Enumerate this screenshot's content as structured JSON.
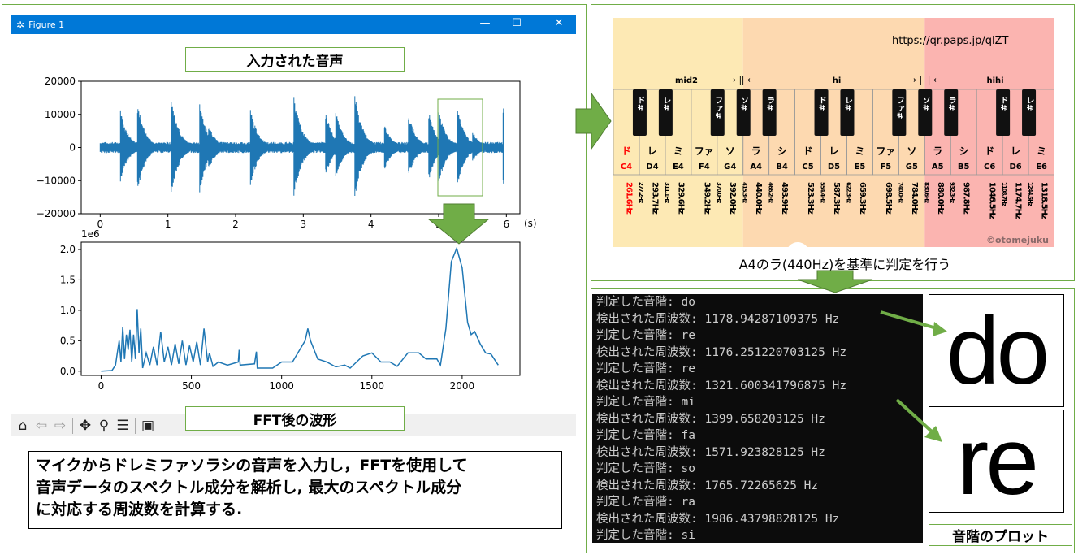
{
  "window": {
    "title": "Figure 1",
    "minimize": "—",
    "maximize": "☐",
    "close": "✕"
  },
  "labels": {
    "input_audio": "入力された音声",
    "fft_waveform": "FFT後の波形",
    "description": [
      "マイクからドレミファソラシの音声を入力し，FFTを使用して",
      "音声データのスペクトル成分を解析し, 最大のスペクトル成分",
      "に対応する周波数を計算する."
    ],
    "reference": "A4のラ(440Hz)を基準に判定を行う",
    "scale_plot": "音階のプロット",
    "plot_do": "do",
    "plot_re": "re"
  },
  "toolbar": {
    "icons": [
      "home-icon",
      "back-arrow-icon",
      "forward-arrow-icon",
      "pan-icon",
      "zoom-icon",
      "configure-icon",
      "save-icon"
    ]
  },
  "chart_data": [
    {
      "type": "line",
      "title": "",
      "xlabel": "(s)",
      "xticks": [
        "0",
        "1",
        "2",
        "3",
        "4",
        "5",
        "6"
      ],
      "yticks": [
        "−20000",
        "−10000",
        "0",
        "10000",
        "20000"
      ],
      "xlim": [
        -0.28,
        6.2
      ],
      "ylim": [
        -20000,
        20000
      ],
      "color": "#1f77b4",
      "noise_level": 1500,
      "bursts": [
        {
          "t": 0.3,
          "max": 11500,
          "min": -10500
        },
        {
          "t": 0.55,
          "max": 14000,
          "min": -14000
        },
        {
          "t": 1.05,
          "max": 15500,
          "min": -15000
        },
        {
          "t": 1.47,
          "max": 13500,
          "min": -14000
        },
        {
          "t": 1.6,
          "max": 7000,
          "min": -7000
        },
        {
          "t": 2.22,
          "max": 12000,
          "min": -12000
        },
        {
          "t": 2.86,
          "max": 16800,
          "min": -16000
        },
        {
          "t": 3.33,
          "max": 11000,
          "min": -8500
        },
        {
          "t": 3.48,
          "max": 11500,
          "min": -9500
        },
        {
          "t": 3.76,
          "max": 17500,
          "min": -16500
        },
        {
          "t": 4.2,
          "max": 7000,
          "min": -7000
        },
        {
          "t": 4.55,
          "max": 11000,
          "min": -9500
        },
        {
          "t": 4.85,
          "max": 11500,
          "min": -10500
        },
        {
          "t": 5.0,
          "max": 12000,
          "min": -11500
        },
        {
          "t": 5.28,
          "max": 12000,
          "min": -11500
        },
        {
          "t": 5.5,
          "max": 5000,
          "min": -4500
        },
        {
          "t": 5.95,
          "max": 13500,
          "min": -12500
        }
      ],
      "t_end": 5.96
    },
    {
      "type": "line",
      "title": "",
      "y_offset_label": "1e6",
      "xticks": [
        "0",
        "500",
        "1000",
        "1500",
        "2000"
      ],
      "yticks": [
        "0.0",
        "0.5",
        "1.0",
        "1.5",
        "2.0"
      ],
      "xlim": [
        -110,
        2320
      ],
      "ylim": [
        -0.07,
        2.12
      ],
      "color": "#1f77b4",
      "points": [
        [
          0,
          0
        ],
        [
          60,
          0.01
        ],
        [
          80,
          0.1
        ],
        [
          90,
          0.3
        ],
        [
          100,
          0.5
        ],
        [
          110,
          0.15
        ],
        [
          120,
          0.73
        ],
        [
          130,
          0.2
        ],
        [
          140,
          0.6
        ],
        [
          150,
          0.35
        ],
        [
          160,
          0.68
        ],
        [
          170,
          0.15
        ],
        [
          180,
          0.6
        ],
        [
          190,
          0.2
        ],
        [
          200,
          1.02
        ],
        [
          210,
          0.3
        ],
        [
          220,
          0.7
        ],
        [
          230,
          0.05
        ],
        [
          250,
          0.3
        ],
        [
          270,
          0.1
        ],
        [
          290,
          0.4
        ],
        [
          310,
          0.1
        ],
        [
          330,
          0.65
        ],
        [
          350,
          0.15
        ],
        [
          370,
          0.4
        ],
        [
          390,
          0.1
        ],
        [
          410,
          0.45
        ],
        [
          430,
          0.12
        ],
        [
          450,
          0.5
        ],
        [
          470,
          0.1
        ],
        [
          490,
          0.42
        ],
        [
          510,
          0.15
        ],
        [
          530,
          0.48
        ],
        [
          550,
          0.1
        ],
        [
          570,
          0.7
        ],
        [
          590,
          0.15
        ],
        [
          600,
          0.3
        ],
        [
          620,
          0.08
        ],
        [
          650,
          0.15
        ],
        [
          700,
          0.1
        ],
        [
          760,
          0.15
        ],
        [
          765,
          0.35
        ],
        [
          770,
          0.1
        ],
        [
          850,
          0.12
        ],
        [
          860,
          0.32
        ],
        [
          865,
          0.05
        ],
        [
          950,
          0.05
        ],
        [
          1000,
          0.15
        ],
        [
          1060,
          0.15
        ],
        [
          1100,
          0.35
        ],
        [
          1130,
          0.5
        ],
        [
          1145,
          0.7
        ],
        [
          1160,
          0.5
        ],
        [
          1200,
          0.2
        ],
        [
          1250,
          0.15
        ],
        [
          1300,
          0.07
        ],
        [
          1350,
          0.1
        ],
        [
          1380,
          0.05
        ],
        [
          1450,
          0.25
        ],
        [
          1500,
          0.3
        ],
        [
          1550,
          0.15
        ],
        [
          1600,
          0.15
        ],
        [
          1640,
          0.08
        ],
        [
          1700,
          0.3
        ],
        [
          1760,
          0.3
        ],
        [
          1800,
          0.2
        ],
        [
          1860,
          0.2
        ],
        [
          1880,
          0.1
        ],
        [
          1910,
          0.7
        ],
        [
          1940,
          1.8
        ],
        [
          1970,
          2.02
        ],
        [
          2000,
          1.7
        ],
        [
          2030,
          0.8
        ],
        [
          2050,
          0.6
        ],
        [
          2070,
          0.65
        ],
        [
          2100,
          0.45
        ],
        [
          2130,
          0.3
        ],
        [
          2160,
          0.28
        ],
        [
          2200,
          0.1
        ]
      ]
    }
  ],
  "piano": {
    "url": "https://qr.paps.jp/qlZT",
    "credit": "©otomejuku",
    "sections": [
      {
        "label": "mid2",
        "color": "#fde9b4"
      },
      {
        "label": "hi",
        "color": "#fdd9b0"
      },
      {
        "label": "hihi",
        "color": "#fbb4b0"
      }
    ],
    "range_arrows": [
      "→ |",
      "| ←",
      "→ |",
      "| ←"
    ],
    "white_keys": [
      {
        "jp": "ド",
        "code": "C4",
        "freq": "261.6Hz",
        "highlight": true
      },
      {
        "jp": "レ",
        "code": "D4",
        "freq": "293.7Hz"
      },
      {
        "jp": "ミ",
        "code": "E4",
        "freq": "329.6Hz"
      },
      {
        "jp": "ファ",
        "code": "F4",
        "freq": "349.2Hz"
      },
      {
        "jp": "ソ",
        "code": "G4",
        "freq": "392.0Hz"
      },
      {
        "jp": "ラ",
        "code": "A4",
        "freq": "440.0Hz"
      },
      {
        "jp": "シ",
        "code": "B4",
        "freq": "493.9Hz"
      },
      {
        "jp": "ド",
        "code": "C5",
        "freq": "523.3Hz"
      },
      {
        "jp": "レ",
        "code": "D5",
        "freq": "587.3Hz"
      },
      {
        "jp": "ミ",
        "code": "E5",
        "freq": "659.3Hz"
      },
      {
        "jp": "ファ",
        "code": "F5",
        "freq": "698.5Hz"
      },
      {
        "jp": "ソ",
        "code": "G5",
        "freq": "784.0Hz"
      },
      {
        "jp": "ラ",
        "code": "A5",
        "freq": "880.0Hz"
      },
      {
        "jp": "シ",
        "code": "B5",
        "freq": "987.8Hz"
      },
      {
        "jp": "ド",
        "code": "C6",
        "freq": "1046.5Hz"
      },
      {
        "jp": "レ",
        "code": "D6",
        "freq": "1174.7Hz"
      },
      {
        "jp": "ミ",
        "code": "E6",
        "freq": "1318.5Hz"
      }
    ],
    "black_keys": [
      {
        "jp": "ド#",
        "after": 0,
        "freq": "277.2Hz"
      },
      {
        "jp": "レ#",
        "after": 1,
        "freq": "311.1Hz"
      },
      {
        "jp": "ファ#",
        "after": 3,
        "freq": "370.0Hz"
      },
      {
        "jp": "ソ#",
        "after": 4,
        "freq": "415.3Hz"
      },
      {
        "jp": "ラ#",
        "after": 5,
        "freq": "466.2Hz"
      },
      {
        "jp": "ド#",
        "after": 7,
        "freq": "554.4Hz"
      },
      {
        "jp": "レ#",
        "after": 8,
        "freq": "622.3Hz"
      },
      {
        "jp": "ファ#",
        "after": 10,
        "freq": "740.0Hz"
      },
      {
        "jp": "ソ#",
        "after": 11,
        "freq": "830.6Hz"
      },
      {
        "jp": "ラ#",
        "after": 12,
        "freq": "932.3Hz"
      },
      {
        "jp": "ド#",
        "after": 14,
        "freq": "1108.7Hz"
      },
      {
        "jp": "レ#",
        "after": 15,
        "freq": "1244.5Hz"
      }
    ]
  },
  "terminal": {
    "lines": [
      "判定した音階: do",
      "検出された周波数: 1178.94287109375 Hz",
      "判定した音階: re",
      "検出された周波数: 1176.251220703125 Hz",
      "判定した音階: re",
      "検出された周波数: 1321.600341796875 Hz",
      "判定した音階: mi",
      "検出された周波数: 1399.658203125 Hz",
      "判定した音階: fa",
      "検出された周波数: 1571.923828125 Hz",
      "判定した音階: so",
      "検出された周波数: 1765.72265625 Hz",
      "判定した音階: ra",
      "検出された周波数: 1986.43798828125 Hz",
      "判定した音階: si"
    ]
  },
  "colors": {
    "accent_green": "#70ad47",
    "titlebar": "#0078d7",
    "plot_line": "#1f77b4",
    "terminal_bg": "#0c0c0c",
    "highlight_red": "#ff0000"
  }
}
